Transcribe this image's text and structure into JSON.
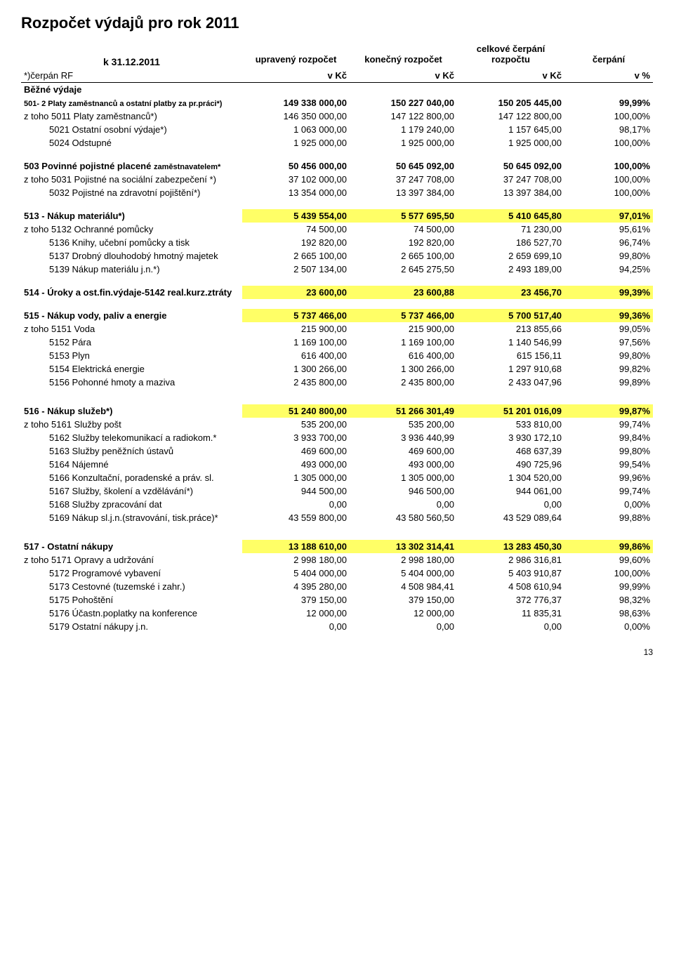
{
  "title": "Rozpočet výdajů pro rok 2011",
  "date_label": "k  31.12.2011",
  "col_headers": [
    "upravený rozpočet",
    "konečný rozpočet",
    "celkové čerpání rozpočtu",
    "čerpání"
  ],
  "sub_row": {
    "label": "*)čerpán RF",
    "c2": "v Kč",
    "c3": "v Kč",
    "c4": "v Kč",
    "c5": "v %"
  },
  "bezne_label": "Běžné výdaje",
  "s501": {
    "label": "501- 2 Platy zaměstnanců a ostatní platby za pr.práci*)",
    "v": [
      "149 338 000,00",
      "150 227 040,00",
      "150 205 445,00",
      "99,99%"
    ],
    "rows": [
      {
        "label": "z toho  5011 Platy zaměstnanců*)",
        "v": [
          "146 350 000,00",
          "147 122 800,00",
          "147 122 800,00",
          "100,00%"
        ]
      },
      {
        "label": "5021 Ostatní osobní výdaje*)",
        "indent": 2,
        "v": [
          "1 063 000,00",
          "1 179 240,00",
          "1 157 645,00",
          "98,17%"
        ]
      },
      {
        "label": "5024 Odstupné",
        "indent": 2,
        "v": [
          "1 925 000,00",
          "1 925 000,00",
          "1 925 000,00",
          "100,00%"
        ]
      }
    ]
  },
  "s503": {
    "label": "503 Povinné pojistné placené",
    "label2": "zaměstnavatelem*",
    "v": [
      "50 456 000,00",
      "50 645 092,00",
      "50 645 092,00",
      "100,00%"
    ],
    "rows": [
      {
        "label": "z toho 5031 Pojistné na sociální zabezpečení *)",
        "v": [
          "37 102 000,00",
          "37 247 708,00",
          "37 247 708,00",
          "100,00%"
        ]
      },
      {
        "label": "5032 Pojistné na zdravotní pojištění*)",
        "indent": 2,
        "v": [
          "13 354 000,00",
          "13 397 384,00",
          "13 397 384,00",
          "100,00%"
        ]
      }
    ]
  },
  "s513": {
    "label": "513 - Nákup materiálu*)",
    "v": [
      "5 439 554,00",
      "5 577 695,50",
      "5 410 645,80",
      "97,01%"
    ],
    "rows": [
      {
        "label": "z toho 5132 Ochranné pomůcky",
        "v": [
          "74 500,00",
          "74 500,00",
          "71 230,00",
          "95,61%"
        ]
      },
      {
        "label": "5136 Knihy, učební pomůcky a tisk",
        "indent": 2,
        "v": [
          "192 820,00",
          "192 820,00",
          "186 527,70",
          "96,74%"
        ]
      },
      {
        "label": "5137 Drobný dlouhodobý hmotný majetek",
        "indent": 2,
        "v": [
          "2 665 100,00",
          "2 665 100,00",
          "2 659 699,10",
          "99,80%"
        ]
      },
      {
        "label": "5139 Nákup materiálu j.n.*)",
        "indent": 2,
        "v": [
          "2 507 134,00",
          "2 645 275,50",
          "2 493 189,00",
          "94,25%"
        ]
      }
    ]
  },
  "s514": {
    "label": "514 - Úroky a ost.fin.výdaje-5142 real.kurz.ztráty",
    "v": [
      "23 600,00",
      "23 600,88",
      "23 456,70",
      "99,39%"
    ]
  },
  "s515": {
    "label": "515 - Nákup vody, paliv a energie",
    "v": [
      "5 737 466,00",
      "5 737 466,00",
      "5 700 517,40",
      "99,36%"
    ],
    "rows": [
      {
        "label": "z toho 5151 Voda",
        "v": [
          "215 900,00",
          "215 900,00",
          "213 855,66",
          "99,05%"
        ]
      },
      {
        "label": "5152 Pára",
        "indent": 2,
        "v": [
          "1 169 100,00",
          "1 169 100,00",
          "1 140 546,99",
          "97,56%"
        ]
      },
      {
        "label": "5153 Plyn",
        "indent": 2,
        "v": [
          "616 400,00",
          "616 400,00",
          "615 156,11",
          "99,80%"
        ]
      },
      {
        "label": "5154 Elektrická energie",
        "indent": 2,
        "v": [
          "1 300 266,00",
          "1 300 266,00",
          "1 297 910,68",
          "99,82%"
        ]
      },
      {
        "label": "5156 Pohonné hmoty a maziva",
        "indent": 2,
        "v": [
          "2 435 800,00",
          "2 435 800,00",
          "2 433 047,96",
          "99,89%"
        ]
      }
    ]
  },
  "s516": {
    "label": "516 - Nákup služeb*)",
    "v": [
      "51 240 800,00",
      "51 266 301,49",
      "51 201 016,09",
      "99,87%"
    ],
    "rows": [
      {
        "label": "z toho 5161 Služby pošt",
        "v": [
          "535 200,00",
          "535 200,00",
          "533 810,00",
          "99,74%"
        ]
      },
      {
        "label": "5162 Služby telekomunikací a  radiokom.*",
        "indent": 2,
        "v": [
          "3 933 700,00",
          "3 936 440,99",
          "3 930 172,10",
          "99,84%"
        ]
      },
      {
        "label": "5163 Služby peněžních ústavů",
        "indent": 2,
        "v": [
          "469 600,00",
          "469 600,00",
          "468 637,39",
          "99,80%"
        ]
      },
      {
        "label": "5164 Nájemné",
        "indent": 2,
        "v": [
          "493 000,00",
          "493 000,00",
          "490 725,96",
          "99,54%"
        ]
      },
      {
        "label": "5166 Konzultační, poradenské a práv. sl.",
        "indent": 2,
        "v": [
          "1 305 000,00",
          "1 305 000,00",
          "1 304 520,00",
          "99,96%"
        ]
      },
      {
        "label": "5167 Služby, školení a vzdělávání*)",
        "indent": 2,
        "v": [
          "944 500,00",
          "946 500,00",
          "944 061,00",
          "99,74%"
        ]
      },
      {
        "label": "5168 Služby zpracování dat",
        "indent": 2,
        "v": [
          "0,00",
          "0,00",
          "0,00",
          "0,00%"
        ]
      },
      {
        "label": "5169 Nákup sl.j.n.(stravování, tisk.práce)*",
        "indent": 2,
        "v": [
          "43 559 800,00",
          "43 580 560,50",
          "43 529 089,64",
          "99,88%"
        ]
      }
    ]
  },
  "s517": {
    "label": "517 - Ostatní nákupy",
    "v": [
      "13 188 610,00",
      "13 302 314,41",
      "13 283 450,30",
      "99,86%"
    ],
    "rows": [
      {
        "label": "z toho 5171 Opravy a udržování",
        "v": [
          "2 998 180,00",
          "2 998 180,00",
          "2 986 316,81",
          "99,60%"
        ]
      },
      {
        "label": "5172 Programové vybavení",
        "indent": 2,
        "v": [
          "5 404 000,00",
          "5 404 000,00",
          "5 403 910,87",
          "100,00%"
        ]
      },
      {
        "label": "5173 Cestovné (tuzemské i zahr.)",
        "indent": 2,
        "v": [
          "4 395 280,00",
          "4 508 984,41",
          "4 508 610,94",
          "99,99%"
        ]
      },
      {
        "label": "5175 Pohoštění",
        "indent": 2,
        "v": [
          "379 150,00",
          "379 150,00",
          "372 776,37",
          "98,32%"
        ]
      },
      {
        "label": "5176 Účastn.poplatky na konference",
        "indent": 2,
        "v": [
          "12 000,00",
          "12 000,00",
          "11 835,31",
          "98,63%"
        ]
      },
      {
        "label": "5179 Ostatní nákupy j.n.",
        "indent": 2,
        "v": [
          "0,00",
          "0,00",
          "0,00",
          "0,00%"
        ]
      }
    ]
  },
  "page_number": "13",
  "highlight_bg": "#ffff66",
  "fontsize_body": 13,
  "fontsize_title": 22
}
